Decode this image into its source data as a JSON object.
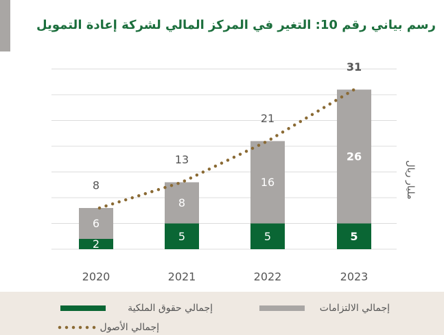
{
  "chart_data": {
    "type": "bar",
    "title": "رسم بياني رقم 10: التغير في المركز المالي لشركة إعادة التمويل",
    "y_label": "مليار ريال",
    "categories": [
      "2020",
      "2021",
      "2022",
      "2023"
    ],
    "series": [
      {
        "name": "إجمالي حقوق الملكية",
        "color": "#0a6634",
        "values": [
          2,
          5,
          5,
          5
        ]
      },
      {
        "name": "إجمالي الالتزامات",
        "color": "#a9a6a4",
        "values": [
          6,
          8,
          16,
          26
        ]
      },
      {
        "name": "إجمالي الأصول",
        "type": "line",
        "color": "#8a6a34",
        "values": [
          8,
          13,
          21,
          31
        ]
      }
    ],
    "stacked": true,
    "ylim": [
      0,
      35
    ],
    "yticks": [
      0,
      5,
      10,
      15,
      20,
      25,
      30,
      35
    ],
    "grid": true
  }
}
